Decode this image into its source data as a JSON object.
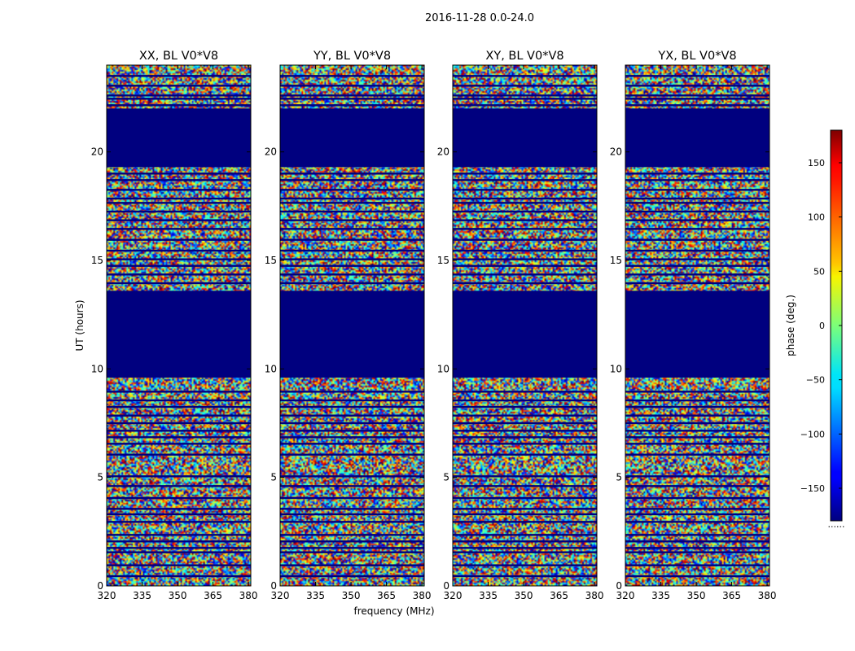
{
  "figure": {
    "suptitle": "2016-11-28 0.0-24.0",
    "xlabel": "frequency (MHz)",
    "ylabel": "UT (hours)",
    "footer_mark": "......"
  },
  "chart_data": {
    "type": "heatmap",
    "title": "2016-11-28 0.0-24.0",
    "xlabel": "frequency (MHz)",
    "ylabel": "UT (hours)",
    "xlim": [
      320,
      381
    ],
    "ylim": [
      0,
      24
    ],
    "x_ticks": [
      "320",
      "335",
      "350",
      "365",
      "380"
    ],
    "x_tick_values": [
      320,
      335,
      350,
      365,
      380
    ],
    "y_ticks": [
      "0",
      "5",
      "10",
      "15",
      "20"
    ],
    "y_tick_values": [
      0,
      5,
      10,
      15,
      20
    ],
    "panels": [
      {
        "title": "XX, BL V0*V8",
        "pol": "XX"
      },
      {
        "title": "YY, BL V0*V8",
        "pol": "YY"
      },
      {
        "title": "XY, BL V0*V8",
        "pol": "XY"
      },
      {
        "title": "YX, BL V0*V8",
        "pol": "YX"
      }
    ],
    "flagged_ut_ranges": [
      [
        9.6,
        13.6
      ],
      [
        19.3,
        22.0
      ]
    ],
    "gap_ut_rows": [
      0.45,
      0.95,
      1.55,
      1.75,
      2.05,
      2.35,
      2.95,
      3.3,
      3.55,
      4.05,
      4.6,
      5.05,
      6.05,
      6.55,
      6.85,
      7.15,
      7.5,
      7.85,
      8.25,
      8.55,
      8.95,
      13.95,
      14.35,
      14.75,
      15.05,
      15.45,
      15.95,
      16.45,
      16.85,
      17.25,
      17.65,
      17.85,
      18.25,
      18.7,
      19.0,
      22.15,
      22.45,
      22.6,
      23.05,
      23.5
    ],
    "colorbar": {
      "label": "phase (deg.)",
      "range": [
        -180,
        180
      ],
      "ticks": [
        "150",
        "100",
        "50",
        "0",
        "−50",
        "−100",
        "−150"
      ],
      "tick_values": [
        150,
        100,
        50,
        0,
        -50,
        -100,
        -150
      ],
      "colormap": "jet"
    }
  },
  "colors": {
    "flagged": "#00007f",
    "gap": "#00007f",
    "axis": "#000000"
  }
}
